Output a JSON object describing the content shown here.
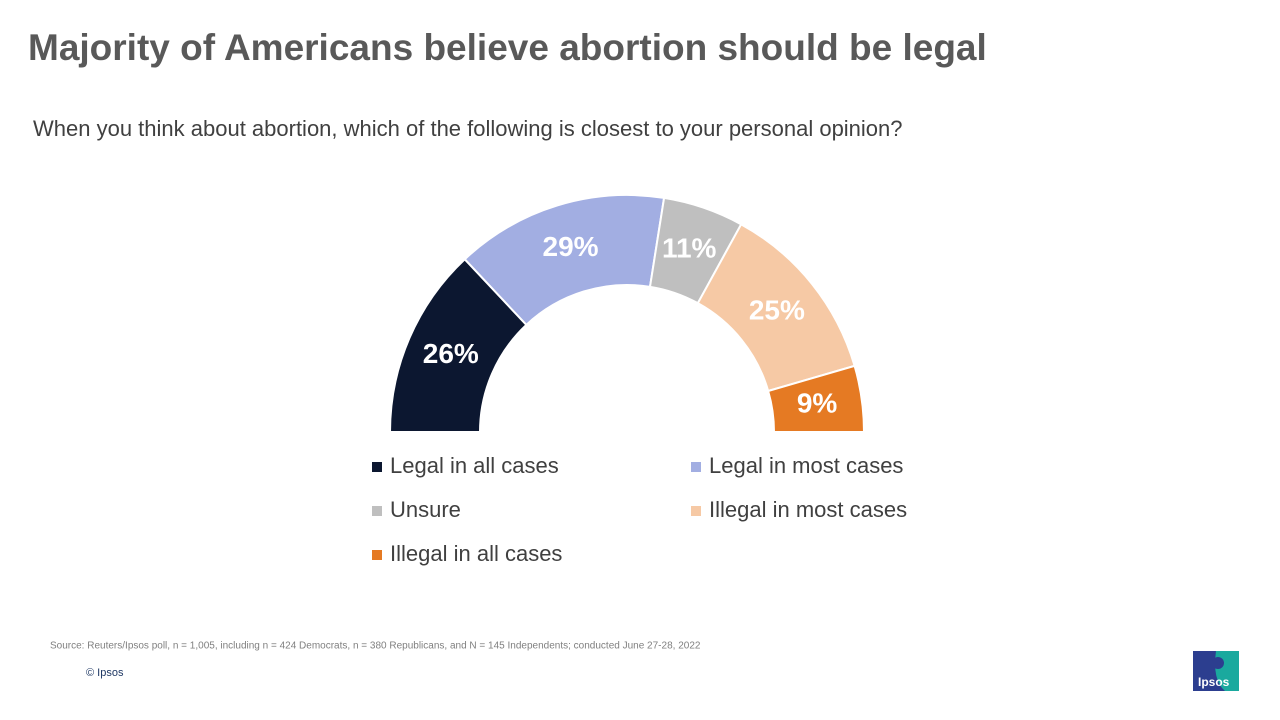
{
  "chart_data": {
    "type": "half-donut",
    "title": "Majority of Americans believe abortion should be legal",
    "subtitle": "When you think about abortion, which of the following is closest to your personal opinion?",
    "categories": [
      "Legal in all cases",
      "Legal in most cases",
      "Unsure",
      "Illegal in most cases",
      "Illegal in all cases"
    ],
    "values": [
      26,
      29,
      11,
      25,
      9
    ],
    "value_labels": [
      "26%",
      "29%",
      "11%",
      "25%",
      "9%"
    ],
    "colors": [
      "#0c1730",
      "#a2aee2",
      "#bfbfbf",
      "#f6c9a5",
      "#e57a23"
    ],
    "source": "Source: Reuters/Ipsos poll, n = 1,005, including n = 424 Democrats, n = 380 Republicans, and N = 145 Independents; conducted June 27-28, 2022",
    "copyright": "© Ipsos",
    "logo": "Ipsos"
  }
}
